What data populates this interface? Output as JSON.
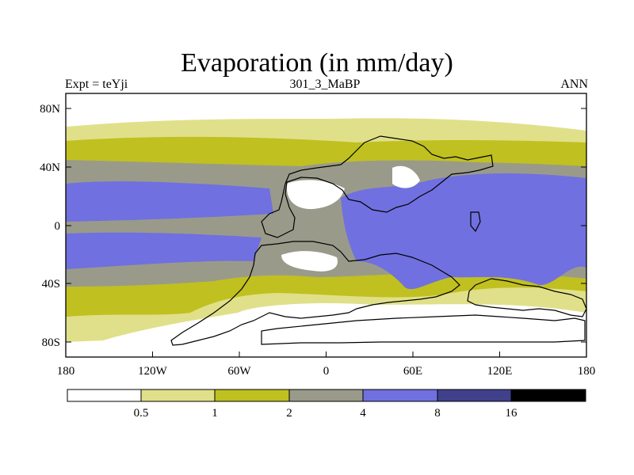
{
  "title": "Evaporation (in mm/day)",
  "subtitle_left": "Expt = teYji",
  "subtitle_center": "301_3_MaBP",
  "subtitle_right": "ANN",
  "axes": {
    "y_ticks": [
      "80N",
      "40N",
      "0",
      "40S",
      "80S"
    ],
    "x_ticks": [
      "180",
      "120W",
      "60W",
      "0",
      "60E",
      "120E",
      "180"
    ]
  },
  "colorbar": {
    "labels": [
      "0.5",
      "1",
      "2",
      "4",
      "8",
      "16"
    ],
    "colors": [
      "#ffffff",
      "#e0e08a",
      "#c0c020",
      "#9a9a8a",
      "#7070e0",
      "#40408c",
      "#000000"
    ]
  },
  "map_colors": {
    "white": "#ffffff",
    "pale": "#e0e08a",
    "olive": "#c0c020",
    "gray": "#9a9a8a",
    "blue": "#7070e0"
  }
}
